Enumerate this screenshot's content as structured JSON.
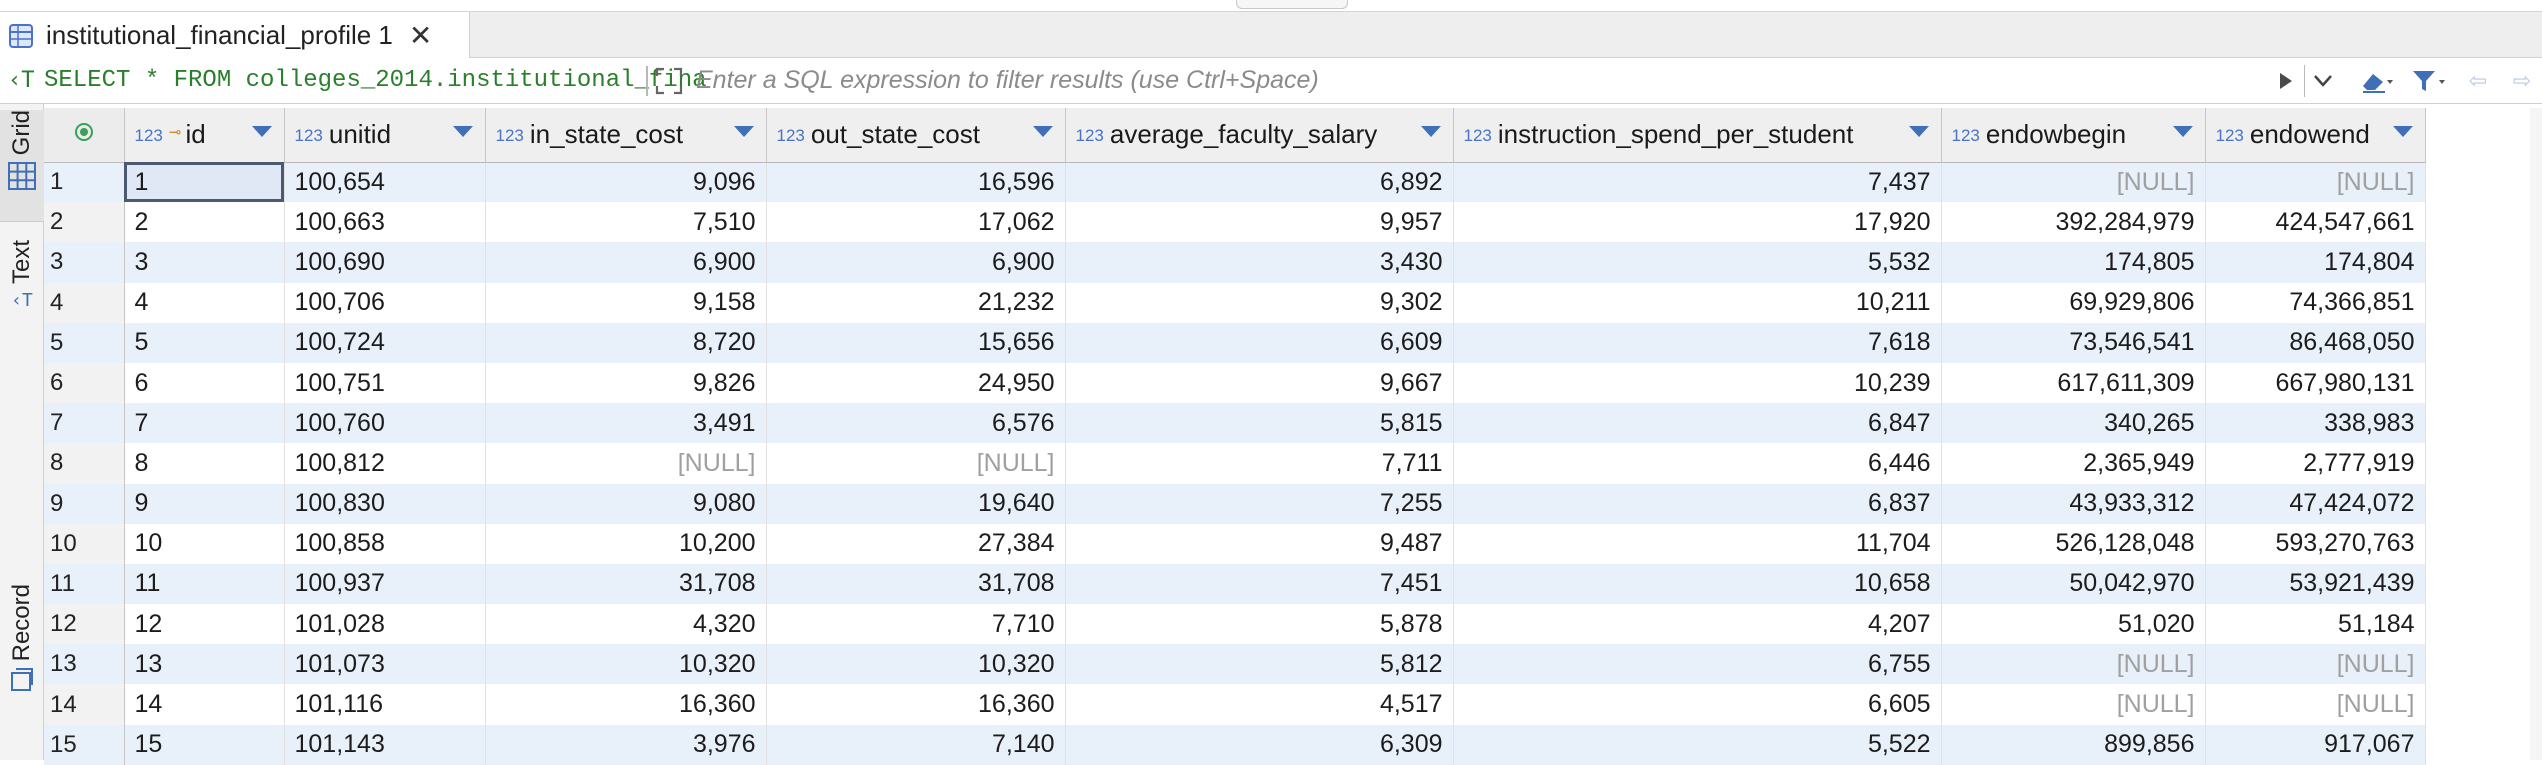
{
  "tab": {
    "title": "institutional_financial_profile 1",
    "icon": "table-grid-icon"
  },
  "filterbar": {
    "sql_text": "SELECT * FROM colleges_2014.institutional_fina",
    "filter_placeholder": "Enter a SQL expression to filter results (use Ctrl+Space)"
  },
  "sidebar": {
    "grid_label": "Grid",
    "text_label": "Text",
    "record_label": "Record"
  },
  "columns": [
    {
      "type": "123",
      "name": "id",
      "key": true
    },
    {
      "type": "123",
      "name": "unitid",
      "key": false
    },
    {
      "type": "123",
      "name": "in_state_cost",
      "key": false
    },
    {
      "type": "123",
      "name": "out_state_cost",
      "key": false
    },
    {
      "type": "123",
      "name": "average_faculty_salary",
      "key": false
    },
    {
      "type": "123",
      "name": "instruction_spend_per_student",
      "key": false
    },
    {
      "type": "123",
      "name": "endowbegin",
      "key": false
    },
    {
      "type": "123",
      "name": "endowend",
      "key": false
    }
  ],
  "rows": [
    [
      "1",
      "1",
      "100,654",
      "9,096",
      "16,596",
      "6,892",
      "7,437",
      "[NULL]",
      "[NULL]"
    ],
    [
      "2",
      "2",
      "100,663",
      "7,510",
      "17,062",
      "9,957",
      "17,920",
      "392,284,979",
      "424,547,661"
    ],
    [
      "3",
      "3",
      "100,690",
      "6,900",
      "6,900",
      "3,430",
      "5,532",
      "174,805",
      "174,804"
    ],
    [
      "4",
      "4",
      "100,706",
      "9,158",
      "21,232",
      "9,302",
      "10,211",
      "69,929,806",
      "74,366,851"
    ],
    [
      "5",
      "5",
      "100,724",
      "8,720",
      "15,656",
      "6,609",
      "7,618",
      "73,546,541",
      "86,468,050"
    ],
    [
      "6",
      "6",
      "100,751",
      "9,826",
      "24,950",
      "9,667",
      "10,239",
      "617,611,309",
      "667,980,131"
    ],
    [
      "7",
      "7",
      "100,760",
      "3,491",
      "6,576",
      "5,815",
      "6,847",
      "340,265",
      "338,983"
    ],
    [
      "8",
      "8",
      "100,812",
      "[NULL]",
      "[NULL]",
      "7,711",
      "6,446",
      "2,365,949",
      "2,777,919"
    ],
    [
      "9",
      "9",
      "100,830",
      "9,080",
      "19,640",
      "7,255",
      "6,837",
      "43,933,312",
      "47,424,072"
    ],
    [
      "10",
      "10",
      "100,858",
      "10,200",
      "27,384",
      "9,487",
      "11,704",
      "526,128,048",
      "593,270,763"
    ],
    [
      "11",
      "11",
      "100,937",
      "31,708",
      "31,708",
      "7,451",
      "10,658",
      "50,042,970",
      "53,921,439"
    ],
    [
      "12",
      "12",
      "101,028",
      "4,320",
      "7,710",
      "5,878",
      "4,207",
      "51,020",
      "51,184"
    ],
    [
      "13",
      "13",
      "101,073",
      "10,320",
      "10,320",
      "5,812",
      "6,755",
      "[NULL]",
      "[NULL]"
    ],
    [
      "14",
      "14",
      "101,116",
      "16,360",
      "16,360",
      "4,517",
      "6,605",
      "[NULL]",
      "[NULL]"
    ],
    [
      "15",
      "15",
      "101,143",
      "3,976",
      "7,140",
      "6,309",
      "5,522",
      "899,856",
      "917,067"
    ]
  ],
  "colors": {
    "accent": "#3f6fb6",
    "sql_green": "#2a7f2a",
    "row_alt": "#e8f0fa",
    "null_text": "#a0a0a0"
  }
}
